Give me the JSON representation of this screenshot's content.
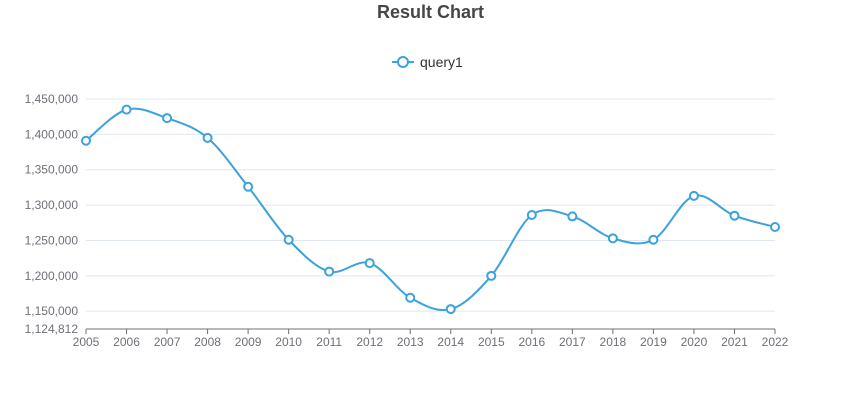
{
  "chart_data": {
    "type": "line",
    "title": "Result Chart",
    "xlabel": "",
    "ylabel": "",
    "x": [
      2005,
      2006,
      2007,
      2008,
      2009,
      2010,
      2011,
      2012,
      2013,
      2014,
      2015,
      2016,
      2017,
      2018,
      2019,
      2020,
      2021,
      2022
    ],
    "series": [
      {
        "name": "query1",
        "values": [
          1391000,
          1435000,
          1423000,
          1395000,
          1326000,
          1251000,
          1206000,
          1218000,
          1169000,
          1153000,
          1200000,
          1286000,
          1284000,
          1253000,
          1251000,
          1313000,
          1285000,
          1269000
        ]
      }
    ],
    "ylim": [
      1124812,
      1450000
    ],
    "y_tick_labels": [
      "1,124,812",
      "1,150,000",
      "1,200,000",
      "1,250,000",
      "1,300,000",
      "1,350,000",
      "1,400,000",
      "1,450,000"
    ],
    "x_tick_labels": [
      "2005",
      "2006",
      "2007",
      "2008",
      "2009",
      "2010",
      "2011",
      "2012",
      "2013",
      "2014",
      "2015",
      "2016",
      "2017",
      "2018",
      "2019",
      "2020",
      "2021",
      "2022"
    ],
    "grid": true,
    "legend_position": "top-center",
    "smooth": true,
    "colors": {
      "line": "#3ba2dc",
      "marker_fill": "#ffffff",
      "grid": "#e0e6f1",
      "axis": "#6e7079",
      "title": "#464646"
    }
  }
}
